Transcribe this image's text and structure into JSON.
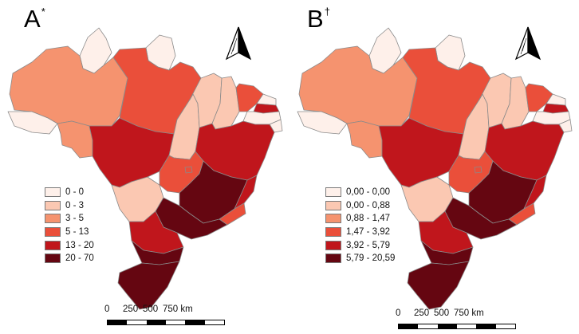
{
  "panels": [
    {
      "letter": "A",
      "mark": "*",
      "legend": [
        {
          "label": "0 - 0",
          "color": "#fef0ea"
        },
        {
          "label": "0 - 3",
          "color": "#fbc8b2"
        },
        {
          "label": "3 - 5",
          "color": "#f5936f"
        },
        {
          "label": "5 - 13",
          "color": "#ea4f3a"
        },
        {
          "label": "13 - 20",
          "color": "#c0161c"
        },
        {
          "label": "20 - 70",
          "color": "#650611"
        }
      ],
      "scale": {
        "labels": [
          "0",
          "250",
          "500",
          "750 km"
        ]
      }
    },
    {
      "letter": "B",
      "mark": "†",
      "legend": [
        {
          "label": "0,00 - 0,00",
          "color": "#fef0ea"
        },
        {
          "label": "0,00 - 0,88",
          "color": "#fbc8b2"
        },
        {
          "label": "0,88 - 1,47",
          "color": "#f5936f"
        },
        {
          "label": "1,47 - 3,92",
          "color": "#ea4f3a"
        },
        {
          "label": "3,92 - 5,79",
          "color": "#c0161c"
        },
        {
          "label": "5,79 - 20,59",
          "color": "#650611"
        }
      ],
      "scale": {
        "labels": [
          "0",
          "250",
          "500",
          "750 km"
        ]
      }
    }
  ]
}
